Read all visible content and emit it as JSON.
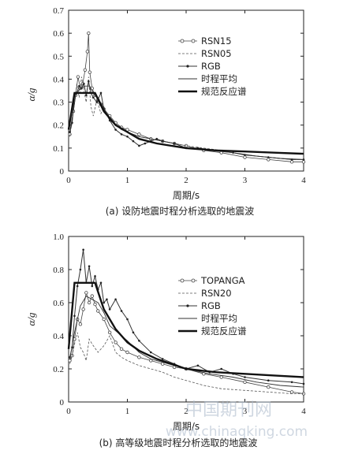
{
  "chart_data": [
    {
      "type": "line",
      "caption": "(a) 设防地震时程分析选取的地震波",
      "xlabel": "周期/s",
      "ylabel": "α/g",
      "xlim": [
        0,
        4
      ],
      "ylim": [
        0,
        0.7
      ],
      "xticks": [
        "0",
        "1",
        "2",
        "3",
        "4"
      ],
      "yticks": [
        "0",
        "0.1",
        "0.2",
        "0.3",
        "0.4",
        "0.5",
        "0.6",
        "0.7"
      ],
      "legend_position": "top-right",
      "series": [
        {
          "name": "RSN15",
          "style": "circle",
          "x": [
            0.02,
            0.08,
            0.12,
            0.16,
            0.2,
            0.24,
            0.28,
            0.32,
            0.34,
            0.36,
            0.4,
            0.45,
            0.5,
            0.55,
            0.6,
            0.7,
            0.8,
            0.9,
            1.0,
            1.2,
            1.4,
            1.6,
            1.8,
            2.0,
            2.3,
            2.6,
            3.0,
            3.4,
            3.8,
            4.0
          ],
          "y": [
            0.16,
            0.26,
            0.33,
            0.41,
            0.36,
            0.38,
            0.44,
            0.52,
            0.6,
            0.43,
            0.36,
            0.33,
            0.31,
            0.29,
            0.27,
            0.24,
            0.21,
            0.19,
            0.18,
            0.16,
            0.14,
            0.13,
            0.12,
            0.11,
            0.09,
            0.08,
            0.06,
            0.05,
            0.04,
            0.04
          ]
        },
        {
          "name": "RSN05",
          "style": "dashed",
          "x": [
            0.02,
            0.06,
            0.1,
            0.14,
            0.18,
            0.22,
            0.26,
            0.3,
            0.34,
            0.38,
            0.42,
            0.48,
            0.55,
            0.6,
            0.7,
            0.8,
            0.9,
            1.0,
            1.2,
            1.4,
            1.6,
            1.8,
            2.0,
            2.3,
            2.6,
            3.0,
            3.4,
            3.8,
            4.0
          ],
          "y": [
            0.15,
            0.22,
            0.3,
            0.38,
            0.32,
            0.41,
            0.35,
            0.3,
            0.41,
            0.28,
            0.24,
            0.31,
            0.25,
            0.28,
            0.22,
            0.2,
            0.18,
            0.17,
            0.15,
            0.14,
            0.13,
            0.12,
            0.11,
            0.1,
            0.09,
            0.07,
            0.06,
            0.05,
            0.05
          ]
        },
        {
          "name": "RGB",
          "style": "dot",
          "x": [
            0.02,
            0.06,
            0.1,
            0.14,
            0.18,
            0.22,
            0.26,
            0.3,
            0.34,
            0.38,
            0.42,
            0.48,
            0.55,
            0.6,
            0.7,
            0.8,
            0.9,
            1.0,
            1.1,
            1.2,
            1.3,
            1.4,
            1.5,
            1.6,
            1.8,
            2.0,
            2.2,
            2.5,
            2.8,
            3.0,
            3.4,
            3.8,
            4.0
          ],
          "y": [
            0.17,
            0.21,
            0.33,
            0.34,
            0.37,
            0.36,
            0.38,
            0.33,
            0.39,
            0.34,
            0.32,
            0.3,
            0.34,
            0.27,
            0.22,
            0.18,
            0.16,
            0.15,
            0.13,
            0.11,
            0.12,
            0.13,
            0.14,
            0.13,
            0.12,
            0.1,
            0.1,
            0.09,
            0.08,
            0.07,
            0.06,
            0.05,
            0.05
          ]
        },
        {
          "name": "时程平均",
          "style": "thin",
          "x": [
            0.02,
            0.08,
            0.12,
            0.2,
            0.28,
            0.36,
            0.44,
            0.5,
            0.6,
            0.7,
            0.8,
            0.9,
            1.0,
            1.2,
            1.4,
            1.6,
            1.8,
            2.0,
            2.4,
            2.8,
            3.2,
            3.6,
            4.0
          ],
          "y": [
            0.17,
            0.26,
            0.33,
            0.36,
            0.37,
            0.37,
            0.33,
            0.32,
            0.27,
            0.23,
            0.2,
            0.18,
            0.17,
            0.15,
            0.14,
            0.13,
            0.12,
            0.1,
            0.09,
            0.08,
            0.065,
            0.055,
            0.05
          ]
        },
        {
          "name": "规范反应谱",
          "style": "thick",
          "x": [
            0.0,
            0.1,
            0.45,
            0.6,
            0.8,
            1.0,
            1.2,
            1.5,
            2.0,
            2.5,
            3.0,
            3.5,
            4.0
          ],
          "y": [
            0.18,
            0.34,
            0.34,
            0.26,
            0.2,
            0.17,
            0.14,
            0.12,
            0.1,
            0.09,
            0.085,
            0.08,
            0.075
          ]
        }
      ]
    },
    {
      "type": "line",
      "caption": "(b) 高等级地震时程分析选取的地震波",
      "xlabel": "周期/s",
      "ylabel": "α/g",
      "xlim": [
        0,
        4
      ],
      "ylim": [
        0,
        1.0
      ],
      "xticks": [
        "0",
        "1",
        "2",
        "3",
        "4"
      ],
      "yticks": [
        "0",
        "0.2",
        "0.4",
        "0.6",
        "0.8",
        "1.0"
      ],
      "legend_position": "top-right",
      "series": [
        {
          "name": "TOPANGA",
          "style": "circle",
          "x": [
            0.02,
            0.06,
            0.1,
            0.15,
            0.2,
            0.25,
            0.3,
            0.35,
            0.4,
            0.45,
            0.5,
            0.6,
            0.7,
            0.8,
            0.9,
            1.0,
            1.2,
            1.4,
            1.6,
            1.8,
            2.0,
            2.3,
            2.6,
            3.0,
            3.4,
            3.8,
            4.0
          ],
          "y": [
            0.25,
            0.28,
            0.38,
            0.5,
            0.47,
            0.56,
            0.66,
            0.6,
            0.64,
            0.59,
            0.55,
            0.5,
            0.42,
            0.36,
            0.32,
            0.3,
            0.27,
            0.25,
            0.23,
            0.21,
            0.2,
            0.17,
            0.15,
            0.12,
            0.09,
            0.06,
            0.05
          ]
        },
        {
          "name": "RSN20",
          "style": "dashed",
          "x": [
            0.02,
            0.06,
            0.1,
            0.15,
            0.2,
            0.25,
            0.3,
            0.35,
            0.4,
            0.5,
            0.6,
            0.7,
            0.8,
            0.9,
            1.0,
            1.2,
            1.4,
            1.6,
            1.8,
            2.0,
            2.3,
            2.6,
            3.0,
            3.4,
            3.8,
            4.0
          ],
          "y": [
            0.23,
            0.28,
            0.35,
            0.42,
            0.33,
            0.3,
            0.25,
            0.38,
            0.35,
            0.3,
            0.34,
            0.4,
            0.3,
            0.27,
            0.25,
            0.22,
            0.2,
            0.18,
            0.15,
            0.13,
            0.1,
            0.08,
            0.07,
            0.06,
            0.05,
            0.05
          ]
        },
        {
          "name": "RGB",
          "style": "dot",
          "x": [
            0.02,
            0.06,
            0.1,
            0.15,
            0.2,
            0.25,
            0.3,
            0.35,
            0.4,
            0.45,
            0.5,
            0.55,
            0.6,
            0.65,
            0.7,
            0.8,
            0.9,
            1.0,
            1.1,
            1.2,
            1.4,
            1.6,
            1.8,
            2.0,
            2.2,
            2.4,
            2.6,
            2.8,
            3.0,
            3.4,
            3.8,
            4.0
          ],
          "y": [
            0.27,
            0.33,
            0.52,
            0.7,
            0.8,
            0.92,
            0.72,
            0.82,
            0.7,
            0.76,
            0.68,
            0.72,
            0.6,
            0.62,
            0.56,
            0.62,
            0.55,
            0.5,
            0.42,
            0.37,
            0.3,
            0.26,
            0.23,
            0.2,
            0.22,
            0.18,
            0.2,
            0.17,
            0.15,
            0.13,
            0.12,
            0.11
          ]
        },
        {
          "name": "时程平均",
          "style": "thin",
          "x": [
            0.02,
            0.1,
            0.2,
            0.3,
            0.4,
            0.5,
            0.6,
            0.7,
            0.8,
            1.0,
            1.2,
            1.4,
            1.6,
            1.8,
            2.0,
            2.4,
            2.8,
            3.2,
            3.6,
            4.0
          ],
          "y": [
            0.26,
            0.42,
            0.58,
            0.64,
            0.62,
            0.6,
            0.54,
            0.46,
            0.43,
            0.37,
            0.3,
            0.26,
            0.24,
            0.22,
            0.2,
            0.17,
            0.15,
            0.12,
            0.1,
            0.09
          ]
        },
        {
          "name": "规范反应谱",
          "style": "thick",
          "x": [
            0.0,
            0.1,
            0.45,
            0.6,
            0.8,
            1.0,
            1.2,
            1.5,
            2.0,
            2.5,
            3.0,
            3.5,
            4.0
          ],
          "y": [
            0.32,
            0.72,
            0.72,
            0.56,
            0.44,
            0.36,
            0.31,
            0.26,
            0.2,
            0.18,
            0.17,
            0.16,
            0.15
          ]
        }
      ]
    }
  ],
  "watermark": {
    "cn": "中国期刊网",
    "url": "www.chinaqking.com"
  }
}
